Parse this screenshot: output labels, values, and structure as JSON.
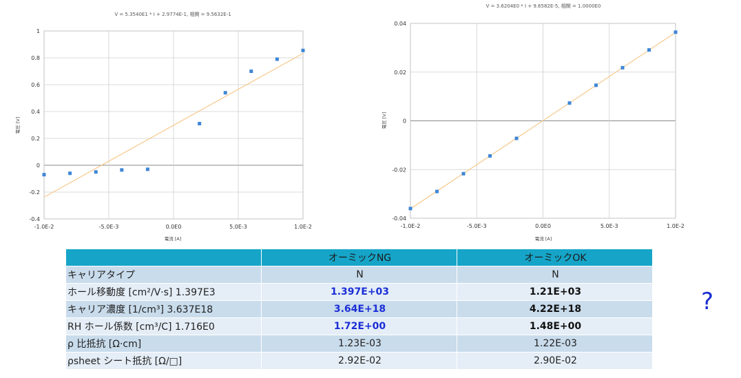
{
  "chart_data": [
    {
      "type": "scatter",
      "title": "V = 5.3540E1 * I + 2.9774E-1, 相関 = 9.5632E-1",
      "xlabel": "電流 [A]",
      "ylabel": "電圧 [V]",
      "xlim": [
        -0.01,
        0.01
      ],
      "ylim": [
        -0.4,
        1.0
      ],
      "xticks": [
        -0.01,
        -0.005,
        0,
        0.005,
        0.01
      ],
      "xtick_labels": [
        "-1.0E-2",
        "-5.0E-3",
        "0.0E0",
        "5.0E-3",
        "1.0E-2"
      ],
      "yticks": [
        -0.4,
        -0.2,
        0,
        0.2,
        0.4,
        0.6,
        0.8,
        1.0
      ],
      "ytick_labels": [
        "-0.4",
        "-0.2",
        "0",
        "0.2",
        "0.4",
        "0.6",
        "0.8",
        "1"
      ],
      "grid": true,
      "series": [
        {
          "x": [
            -0.01,
            -0.008,
            -0.006,
            -0.004,
            -0.002,
            0.002,
            0.004,
            0.006,
            0.008,
            0.01
          ],
          "y": [
            -0.07,
            -0.06,
            -0.05,
            -0.035,
            -0.03,
            0.31,
            0.54,
            0.7,
            0.79,
            0.855
          ]
        }
      ],
      "fit": {
        "slope": 53.54,
        "intercept": 0.29774
      },
      "colors": {
        "points": "#3f86d6",
        "fit": "#f6c98a"
      }
    },
    {
      "type": "scatter",
      "title": "V = 3.6204E0 * I + 9.6582E-5, 相関 = 1.0000E0",
      "xlabel": "電流 [A]",
      "ylabel": "電圧 [V]",
      "xlim": [
        -0.01,
        0.01
      ],
      "ylim": [
        -0.04,
        0.04
      ],
      "xticks": [
        -0.01,
        -0.005,
        0,
        0.005,
        0.01
      ],
      "xtick_labels": [
        "-1.0E-2",
        "-5.0E-3",
        "0.0E0",
        "5.0E-3",
        "1.0E-2"
      ],
      "yticks": [
        -0.04,
        -0.02,
        0,
        0.02,
        0.04
      ],
      "ytick_labels": [
        "-0.04",
        "-0.02",
        "0",
        "0.02",
        "0.04"
      ],
      "grid": true,
      "series": [
        {
          "x": [
            -0.01,
            -0.008,
            -0.006,
            -0.004,
            -0.002,
            0.002,
            0.004,
            0.006,
            0.008,
            0.01
          ],
          "y": [
            -0.036,
            -0.029,
            -0.0217,
            -0.0144,
            -0.0072,
            0.0073,
            0.0146,
            0.0218,
            0.0291,
            0.0364
          ]
        }
      ],
      "fit": {
        "slope": 3.6204,
        "intercept": 9.6582e-05
      },
      "colors": {
        "points": "#3f86d6",
        "fit": "#f6c98a"
      }
    }
  ],
  "table": {
    "headers": [
      "",
      "オーミックNG",
      "オーミックOK"
    ],
    "rows": [
      {
        "label": "キャリアタイプ",
        "ng": "N",
        "ok": "N",
        "bold": false
      },
      {
        "label": "ホール移動度 [cm²/V·s] 1.397E3",
        "ng": "1.397E+03",
        "ok": "1.21E+03",
        "bold": true
      },
      {
        "label": "キャリア濃度 [1/cm³]  3.637E18",
        "ng": "3.64E+18",
        "ok": "4.22E+18",
        "bold": true
      },
      {
        "label": "RH ホール係数 [cm³/C]  1.716E0",
        "ng": "1.72E+00",
        "ok": "1.48E+00",
        "bold": true
      },
      {
        "label": "ρ 比抵抗 [Ω·cm]",
        "ng": "1.23E-03",
        "ok": "1.22E-03",
        "bold": false
      },
      {
        "label": "ρsheet シート抵抗 [Ω/□]",
        "ng": "2.92E-02",
        "ok": "2.90E-02",
        "bold": false
      }
    ]
  },
  "question_mark": "?",
  "colors": {
    "header_bg": "#16a5c8",
    "row_odd": "#c9dcec",
    "row_even": "#e5eef7",
    "bold_blue": "#1b2ed6"
  }
}
